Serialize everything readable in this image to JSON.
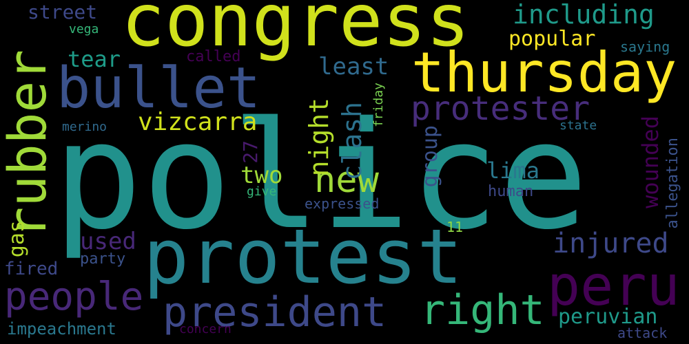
{
  "wordcloud": {
    "background": "#000000",
    "words": {
      "police": {
        "text": "police",
        "color": "#21918c"
      },
      "congress": {
        "text": "congress",
        "color": "#d0e11c"
      },
      "protest": {
        "text": "protest",
        "color": "#26828e"
      },
      "thursday": {
        "text": "thursday",
        "color": "#fde725"
      },
      "bullet": {
        "text": "bullet",
        "color": "#3b528b"
      },
      "rubber": {
        "text": "rubber",
        "color": "#a0da39"
      },
      "peru": {
        "text": "peru",
        "color": "#440154"
      },
      "president": {
        "text": "president",
        "color": "#3e4989"
      },
      "people": {
        "text": "people",
        "color": "#482878"
      },
      "right": {
        "text": "right",
        "color": "#35b779"
      },
      "protester": {
        "text": "protester",
        "color": "#472d7b"
      },
      "new": {
        "text": "new",
        "color": "#a0da39"
      },
      "including": {
        "text": "including",
        "color": "#1f9a8a"
      },
      "injured": {
        "text": "injured",
        "color": "#3e4989"
      },
      "vizcarra": {
        "text": "vizcarra",
        "color": "#d0e11c"
      },
      "clash": {
        "text": "clash",
        "color": "#2c728e"
      },
      "night": {
        "text": "night",
        "color": "#b5de2b"
      },
      "popular": {
        "text": "popular",
        "color": "#fde725"
      },
      "least": {
        "text": "least",
        "color": "#306a8e"
      },
      "tear": {
        "text": "tear",
        "color": "#1e9c89"
      },
      "two": {
        "text": "two",
        "color": "#a0da39"
      },
      "wounded": {
        "text": "wounded",
        "color": "#440154"
      },
      "group": {
        "text": "group",
        "color": "#3b528b"
      },
      "lima": {
        "text": "lima",
        "color": "#2a788e"
      },
      "used": {
        "text": "used",
        "color": "#482878"
      },
      "gas": {
        "text": "gas",
        "color": "#b5de2b"
      },
      "peruvian": {
        "text": "peruvian",
        "color": "#1f9a8a"
      },
      "street": {
        "text": "street",
        "color": "#3e4989"
      },
      "27": {
        "text": "27",
        "color": "#481a6c"
      },
      "allegation": {
        "text": "allegation",
        "color": "#3b528b"
      },
      "impeachment": {
        "text": "impeachment",
        "color": "#2a788e"
      },
      "fired": {
        "text": "fired",
        "color": "#3e4989"
      },
      "party": {
        "text": "party",
        "color": "#3b528b"
      },
      "called": {
        "text": "called",
        "color": "#440154"
      },
      "saying": {
        "text": "saying",
        "color": "#2a788e"
      },
      "human": {
        "text": "human",
        "color": "#3e4989"
      },
      "expressed": {
        "text": "expressed",
        "color": "#3b528b"
      },
      "attack": {
        "text": "attack",
        "color": "#3e4989"
      },
      "friday": {
        "text": "friday",
        "color": "#7ad151"
      },
      "merino": {
        "text": "merino",
        "color": "#306a8e"
      },
      "state": {
        "text": "state",
        "color": "#2c728e"
      },
      "give": {
        "text": "give",
        "color": "#35b779"
      },
      "vega": {
        "text": "vega",
        "color": "#35b779"
      },
      "concern": {
        "text": "concern",
        "color": "#440154"
      },
      "11": {
        "text": "11",
        "color": "#8fd744"
      }
    }
  }
}
